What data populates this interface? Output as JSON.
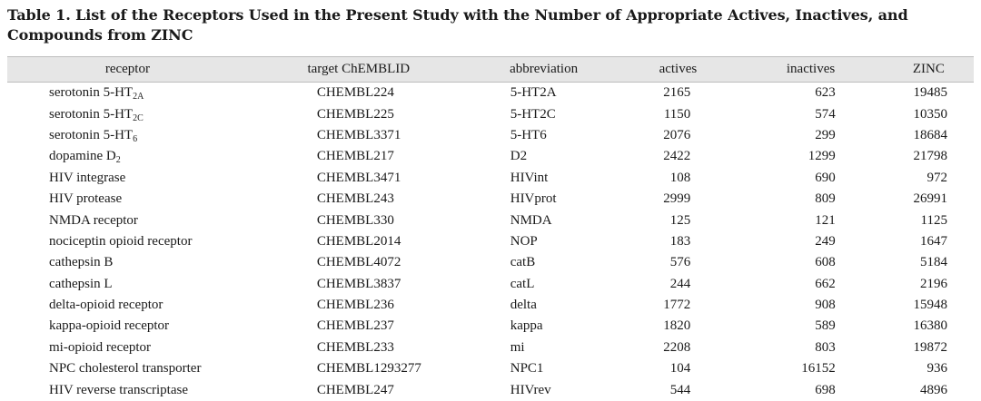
{
  "caption": "Table 1. List of the Receptors Used in the Present Study with the Number of Appropriate Actives, Inactives, and Compounds from ZINC",
  "headers": {
    "receptor": "receptor",
    "target": "target ChEMBLID",
    "abbreviation": "abbreviation",
    "actives": "actives",
    "inactives": "inactives",
    "zinc": "ZINC"
  },
  "rows": [
    {
      "name": "serotonin 5-HT",
      "sub": "2A",
      "target": "CHEMBL224",
      "abbr": "5-HT2A",
      "actives": "2165",
      "inactives": "623",
      "zinc": "19485"
    },
    {
      "name": "serotonin 5-HT",
      "sub": "2C",
      "target": "CHEMBL225",
      "abbr": "5-HT2C",
      "actives": "1150",
      "inactives": "574",
      "zinc": "10350"
    },
    {
      "name": "serotonin 5-HT",
      "sub": "6",
      "target": "CHEMBL3371",
      "abbr": "5-HT6",
      "actives": "2076",
      "inactives": "299",
      "zinc": "18684"
    },
    {
      "name": "dopamine D",
      "sub": "2",
      "target": "CHEMBL217",
      "abbr": "D2",
      "actives": "2422",
      "inactives": "1299",
      "zinc": "21798"
    },
    {
      "name": "HIV integrase",
      "sub": "",
      "target": "CHEMBL3471",
      "abbr": "HIVint",
      "actives": "108",
      "inactives": "690",
      "zinc": "972"
    },
    {
      "name": "HIV protease",
      "sub": "",
      "target": "CHEMBL243",
      "abbr": "HIVprot",
      "actives": "2999",
      "inactives": "809",
      "zinc": "26991"
    },
    {
      "name": "NMDA receptor",
      "sub": "",
      "target": "CHEMBL330",
      "abbr": "NMDA",
      "actives": "125",
      "inactives": "121",
      "zinc": "1125"
    },
    {
      "name": "nociceptin opioid receptor",
      "sub": "",
      "target": "CHEMBL2014",
      "abbr": "NOP",
      "actives": "183",
      "inactives": "249",
      "zinc": "1647"
    },
    {
      "name": "cathepsin B",
      "sub": "",
      "target": "CHEMBL4072",
      "abbr": "catB",
      "actives": "576",
      "inactives": "608",
      "zinc": "5184"
    },
    {
      "name": "cathepsin L",
      "sub": "",
      "target": "CHEMBL3837",
      "abbr": "catL",
      "actives": "244",
      "inactives": "662",
      "zinc": "2196"
    },
    {
      "name": "delta-opioid receptor",
      "sub": "",
      "target": "CHEMBL236",
      "abbr": "delta",
      "actives": "1772",
      "inactives": "908",
      "zinc": "15948"
    },
    {
      "name": "kappa-opioid receptor",
      "sub": "",
      "target": "CHEMBL237",
      "abbr": "kappa",
      "actives": "1820",
      "inactives": "589",
      "zinc": "16380"
    },
    {
      "name": "mi-opioid receptor",
      "sub": "",
      "target": "CHEMBL233",
      "abbr": "mi",
      "actives": "2208",
      "inactives": "803",
      "zinc": "19872"
    },
    {
      "name": "NPC cholesterol transporter",
      "sub": "",
      "target": "CHEMBL1293277",
      "abbr": "NPC1",
      "actives": "104",
      "inactives": "16152",
      "zinc": "936"
    },
    {
      "name": "HIV reverse transcriptase",
      "sub": "",
      "target": "CHEMBL247",
      "abbr": "HIVrev",
      "actives": "544",
      "inactives": "698",
      "zinc": "4896"
    }
  ]
}
